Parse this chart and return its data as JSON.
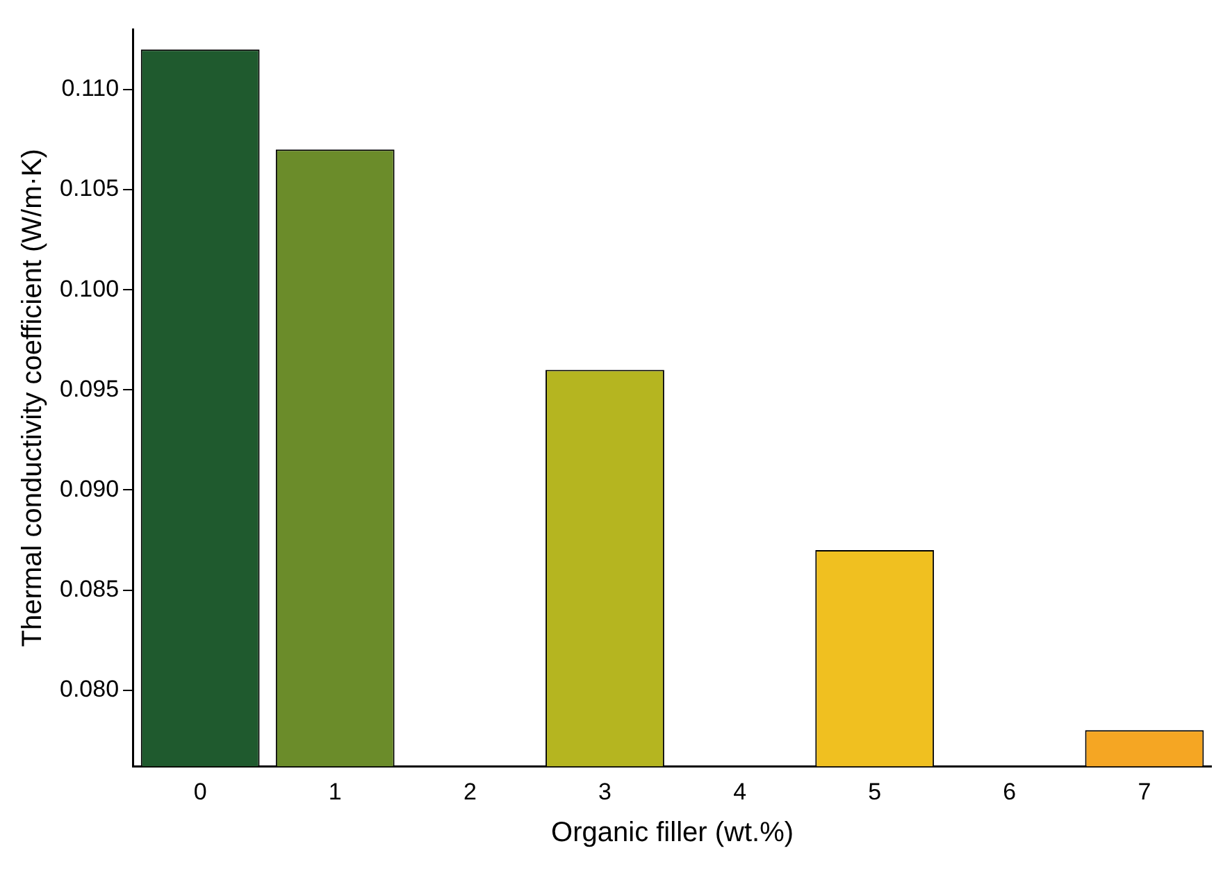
{
  "chart_data": {
    "type": "bar",
    "xlabel": "Organic filler (wt.%)",
    "ylabel": "Thermal conductivity coefficient (W/m·K)",
    "categories": [
      "0",
      "1",
      "2",
      "3",
      "4",
      "5",
      "6",
      "7"
    ],
    "values": [
      0.112,
      0.107,
      null,
      0.096,
      null,
      0.087,
      null,
      0.078
    ],
    "colors": [
      "#1f5a2e",
      "#6b8c2a",
      null,
      "#b5b520",
      null,
      "#f0c020",
      null,
      "#f5a623"
    ],
    "ylim": [
      0.0762,
      0.113
    ],
    "yticks": [
      {
        "value": 0.08,
        "label": "0.080"
      },
      {
        "value": 0.085,
        "label": "0.085"
      },
      {
        "value": 0.09,
        "label": "0.090"
      },
      {
        "value": 0.095,
        "label": "0.095"
      },
      {
        "value": 0.1,
        "label": "0.100"
      },
      {
        "value": 0.105,
        "label": "0.105"
      },
      {
        "value": 0.11,
        "label": "0.110"
      }
    ],
    "grid": false,
    "legend": false
  }
}
